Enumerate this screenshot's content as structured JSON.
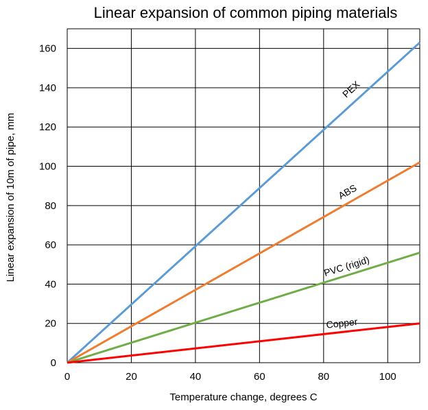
{
  "chart_data": {
    "type": "line",
    "title": "Linear expansion of common piping materials",
    "xlabel": "Temperature change, degrees C",
    "ylabel": "Linear expansion of 10m of pipe, mm",
    "xlim": [
      0,
      110
    ],
    "ylim": [
      0,
      170
    ],
    "x_ticks": [
      "0",
      "20",
      "40",
      "60",
      "80",
      "100"
    ],
    "y_ticks": [
      "0",
      "20",
      "40",
      "60",
      "80",
      "100",
      "120",
      "140",
      "160"
    ],
    "grid": true,
    "legend": "none",
    "series": [
      {
        "name": "PEX",
        "color": "#5b9bd5",
        "x": [
          0,
          110
        ],
        "y": [
          0,
          163
        ]
      },
      {
        "name": "ABS",
        "color": "#ed7d31",
        "x": [
          0,
          110
        ],
        "y": [
          0,
          102
        ]
      },
      {
        "name": "PVC (rigid)",
        "color": "#70ad47",
        "x": [
          0,
          110
        ],
        "y": [
          0,
          56
        ]
      },
      {
        "name": "Copper",
        "color": "#ff0000",
        "x": [
          0,
          110
        ],
        "y": [
          0,
          20
        ]
      }
    ]
  }
}
